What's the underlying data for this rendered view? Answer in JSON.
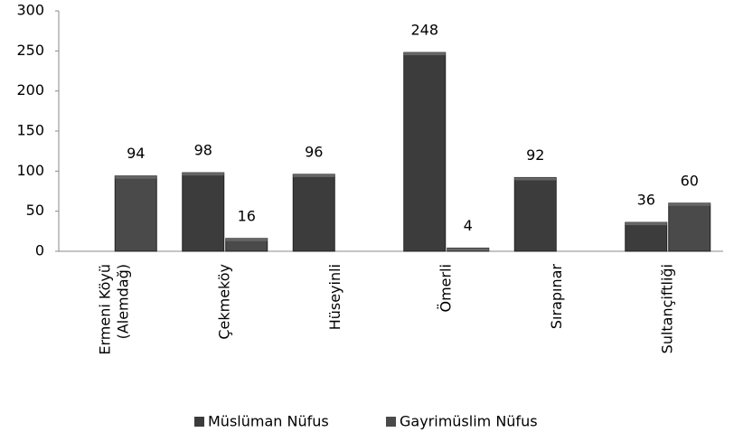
{
  "chart_data": {
    "type": "bar",
    "categories": [
      "Ermeni Köyü (Alemdağ)",
      "Çekmeköy",
      "Hüseyinli",
      "Ömerli",
      "Sırapınar",
      "Sultançiftliği"
    ],
    "series": [
      {
        "name": "Müslüman Nüfus",
        "color": "#3c3c3c",
        "values": [
          null,
          98,
          96,
          248,
          92,
          36
        ]
      },
      {
        "name": "Gayrimüslim Nüfus",
        "color": "#4a4a4a",
        "values": [
          94,
          16,
          null,
          4,
          null,
          60
        ]
      }
    ],
    "ylim": [
      0,
      300
    ],
    "yticks": [
      0,
      50,
      100,
      150,
      200,
      250,
      300
    ],
    "grid": false,
    "legend": "bottom"
  }
}
